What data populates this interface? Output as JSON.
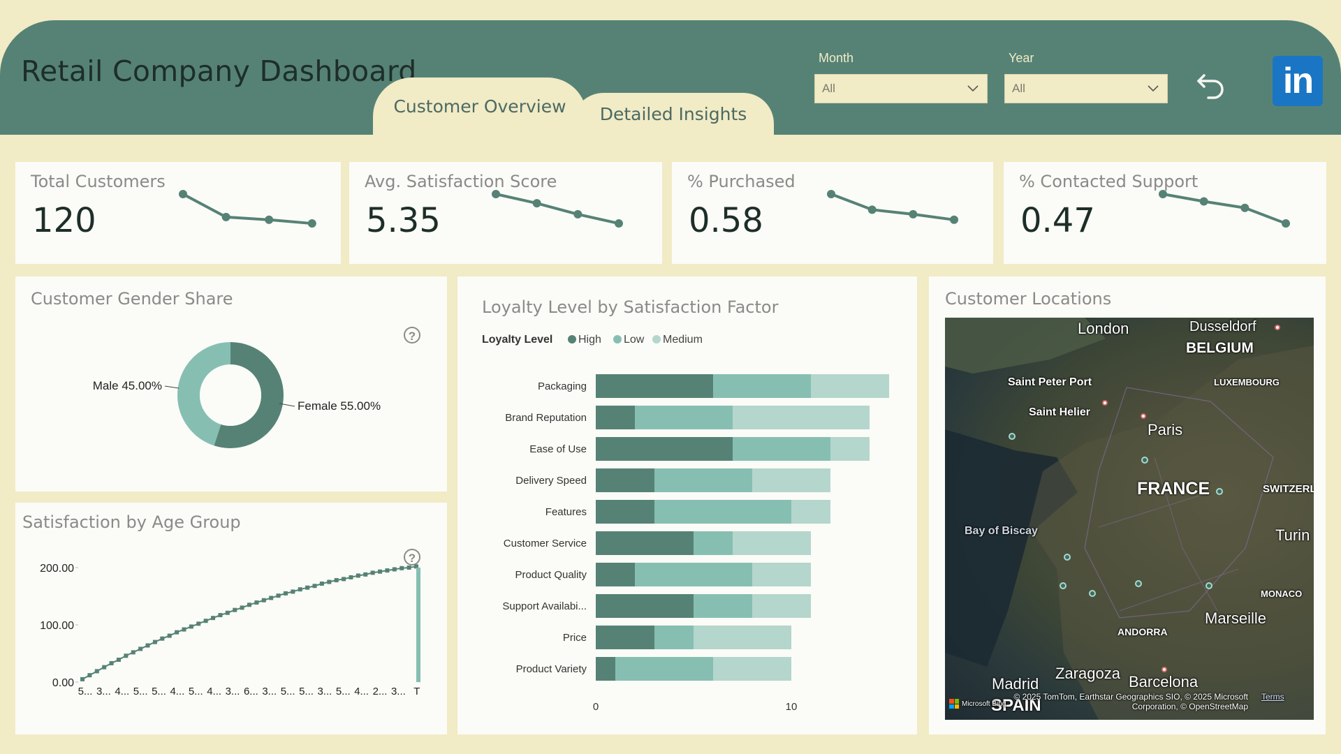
{
  "header": {
    "title": "Retail Company Dashboard",
    "tabs": [
      {
        "label": "Customer Overview",
        "active": true
      },
      {
        "label": "Detailed Insights",
        "active": false
      }
    ],
    "filters": [
      {
        "label": "Month",
        "value": "All"
      },
      {
        "label": "Year",
        "value": "All"
      }
    ],
    "back_icon": "undo-arrow-icon",
    "logo_icon": "linkedin-icon",
    "logo_text": "in"
  },
  "colors": {
    "background": "#f1ebc6",
    "header": "#568276",
    "high": "#568276",
    "low": "#86bfb2",
    "medium": "#b4d6cc"
  },
  "kpis": [
    {
      "label": "Total Customers",
      "value": "120"
    },
    {
      "label": "Avg. Satisfaction Score",
      "value": "5.35"
    },
    {
      "label": "% Purchased",
      "value": "0.58"
    },
    {
      "label": "% Contacted Support",
      "value": "0.47"
    }
  ],
  "visuals": {
    "gender_title": "Customer Gender Share",
    "age_title": "Satisfaction by Age Group",
    "loyalty_title": "Loyalty Level by Satisfaction Factor",
    "map_title": "Customer Locations",
    "help_glyph": "?"
  },
  "chart_data": [
    {
      "id": "kpi-total-customers-trend",
      "type": "line",
      "values": [
        4,
        1.5,
        1.2,
        0.8
      ]
    },
    {
      "id": "kpi-avg-satisfaction-trend",
      "type": "line",
      "values": [
        4,
        3,
        1.8,
        0.8
      ]
    },
    {
      "id": "kpi-purchased-trend",
      "type": "line",
      "values": [
        4,
        2.3,
        1.8,
        1.2
      ]
    },
    {
      "id": "kpi-contacted-support-trend",
      "type": "line",
      "values": [
        4,
        3.2,
        2.5,
        0.8
      ]
    },
    {
      "id": "gender-share",
      "type": "pie",
      "categories": [
        "Male",
        "Female"
      ],
      "values": [
        45.0,
        55.0
      ],
      "labels": [
        "Male 45.00%",
        "Female 55.00%"
      ],
      "colors": [
        "#86bfb2",
        "#568276"
      ]
    },
    {
      "id": "satisfaction-by-age",
      "type": "line",
      "title": "Satisfaction by Age Group",
      "yticks": [
        "200.00",
        "100.00",
        "0.00"
      ],
      "ylim": [
        0,
        200
      ],
      "xticks": [
        "5...",
        "3...",
        "4...",
        "5...",
        "5...",
        "4...",
        "5...",
        "4...",
        "3...",
        "6...",
        "3...",
        "5...",
        "5...",
        "3...",
        "5...",
        "4...",
        "2...",
        "3...",
        "T"
      ],
      "values": [
        5,
        12,
        19,
        26,
        33,
        39,
        46,
        52,
        58,
        64,
        70,
        76,
        81,
        87,
        92,
        97,
        102,
        107,
        112,
        117,
        121,
        126,
        130,
        135,
        139,
        143,
        147,
        151,
        155,
        158,
        162,
        165,
        168,
        172,
        175,
        178,
        180,
        183,
        186,
        188,
        191,
        193,
        195,
        197,
        199,
        200,
        202
      ],
      "total_value": 200
    },
    {
      "id": "loyalty-by-factor",
      "type": "bar",
      "orientation": "horizontal",
      "stacked": true,
      "title": "Loyalty Level by Satisfaction Factor",
      "legend_title": "Loyalty Level",
      "categories": [
        "Packaging",
        "Brand Reputation",
        "Ease of Use",
        "Delivery Speed",
        "Features",
        "Customer Service",
        "Product Quality",
        "Support Availabi...",
        "Price",
        "Product Variety"
      ],
      "series": [
        {
          "name": "High",
          "color": "#568276",
          "values": [
            6,
            2,
            7,
            3,
            3,
            5,
            2,
            5,
            3,
            1
          ]
        },
        {
          "name": "Low",
          "color": "#86bfb2",
          "values": [
            5,
            5,
            5,
            5,
            7,
            2,
            6,
            3,
            2,
            5
          ]
        },
        {
          "name": "Medium",
          "color": "#b4d6cc",
          "values": [
            4,
            7,
            2,
            4,
            2,
            4,
            3,
            3,
            5,
            4
          ]
        }
      ],
      "xticks": [
        "0",
        "10"
      ],
      "xlim": [
        0,
        15
      ]
    }
  ],
  "map": {
    "labels": [
      {
        "text": "London"
      },
      {
        "text": "Dusseldorf"
      },
      {
        "text": "BELGIUM"
      },
      {
        "text": "LUXEMBOURG"
      },
      {
        "text": "Saint Peter Port"
      },
      {
        "text": "Saint Helier"
      },
      {
        "text": "Paris"
      },
      {
        "text": "FRANCE"
      },
      {
        "text": "SWITZERL"
      },
      {
        "text": "Bay of Biscay"
      },
      {
        "text": "Turin"
      },
      {
        "text": "MONACO"
      },
      {
        "text": "Marseille"
      },
      {
        "text": "ANDORRA"
      },
      {
        "text": "Zaragoza"
      },
      {
        "text": "Madrid"
      },
      {
        "text": "Barcelona"
      },
      {
        "text": "SPAIN"
      }
    ],
    "attribution": "© 2025 TomTom, Earthstar Geographics SIO, © 2025 Microsoft Corporation, © OpenStreetMap",
    "terms": "Terms",
    "bing": "Microsoft Bing"
  }
}
